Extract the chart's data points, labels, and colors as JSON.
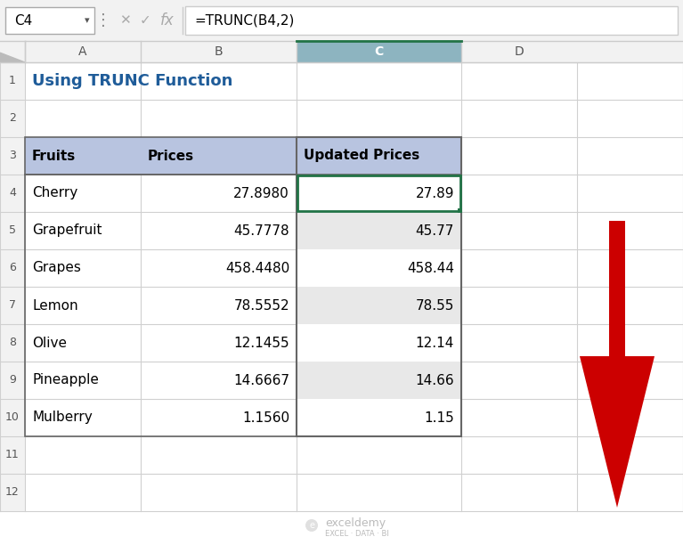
{
  "formula_bar_cell": "C4",
  "formula_bar_formula": "=TRUNC(B4,2)",
  "col_headers": [
    "A",
    "B",
    "C",
    "D"
  ],
  "header_row": [
    "Fruits",
    "Prices",
    "Updated Prices"
  ],
  "fruits": [
    "Cherry",
    "Grapefruit",
    "Grapes",
    "Lemon",
    "Olive",
    "Pineapple",
    "Mulberry"
  ],
  "prices": [
    "27.8980",
    "45.7778",
    "458.4480",
    "78.5552",
    "12.1455",
    "14.6667",
    "1.1560"
  ],
  "updated_prices": [
    "27.89",
    "45.77",
    "458.44",
    "78.55",
    "12.14",
    "14.66",
    "1.15"
  ],
  "title_text": "Using TRUNC Function",
  "title_color": "#1F5C99",
  "header_bg": "#B8C4E0",
  "updated_col_bg_light": "#E8E8E8",
  "updated_col_bg_dark": "#D0D0D0",
  "active_cell_border": "#217346",
  "bg_color": "#FFFFFF",
  "arrow_color": "#CC0000",
  "toolbar_bg": "#F2F2F2",
  "grid_line_color": "#D0D0D0",
  "row_header_bg": "#F2F2F2",
  "col_c_header_bg": "#8DB4C0",
  "border_dark": "#666666",
  "watermark_text_color": "#BBBBBB"
}
